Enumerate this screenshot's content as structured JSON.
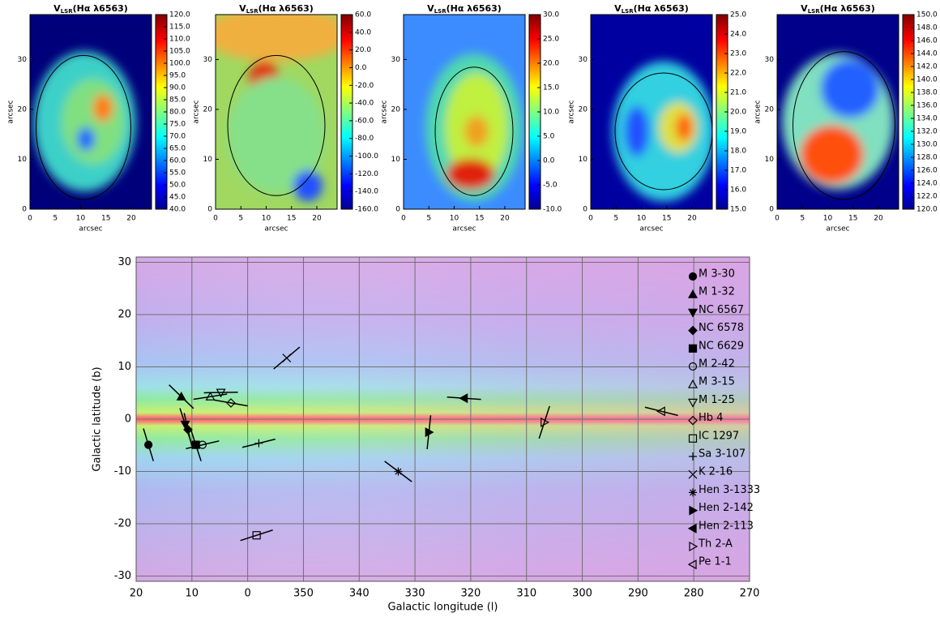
{
  "chart_data": [
    {
      "type": "heatmap",
      "title_main": "V",
      "title_sub": "LSR",
      "title_rest": "(Hα λ6563)",
      "xlabel": "arcsec",
      "ylabel": "arcsec",
      "xlim": [
        0,
        24
      ],
      "ylim": [
        0,
        39
      ],
      "xticks": [
        0,
        5,
        10,
        15,
        20
      ],
      "yticks": [
        0,
        10,
        20,
        30
      ],
      "clim": [
        40,
        120
      ],
      "cticks": [
        {
          "value": 40,
          "label": "40.0"
        },
        {
          "value": 45,
          "label": "45.0"
        },
        {
          "value": 50,
          "label": "50.0"
        },
        {
          "value": 55,
          "label": "55.0"
        },
        {
          "value": 60,
          "label": "60.0"
        },
        {
          "value": 65,
          "label": "65.0"
        },
        {
          "value": 70,
          "label": "70.0"
        },
        {
          "value": 75,
          "label": "75.0"
        },
        {
          "value": 80,
          "label": "80.0"
        },
        {
          "value": 85,
          "label": "85.0"
        },
        {
          "value": 90,
          "label": "90.0"
        },
        {
          "value": 95,
          "label": "95.0"
        },
        {
          "value": 100,
          "label": "100.0"
        },
        {
          "value": 105,
          "label": "105.0"
        },
        {
          "value": 110,
          "label": "110.0"
        },
        {
          "value": 115,
          "label": "115.0"
        },
        {
          "value": 120,
          "label": "120.0"
        }
      ]
    },
    {
      "type": "heatmap",
      "title_main": "V",
      "title_sub": "LSR",
      "title_rest": "(Hα λ6563)",
      "xlabel": "arcsec",
      "ylabel": "arcsec",
      "xlim": [
        0,
        24
      ],
      "ylim": [
        0,
        39
      ],
      "xticks": [
        0,
        5,
        10,
        15,
        20
      ],
      "yticks": [
        0,
        10,
        20,
        30
      ],
      "clim": [
        -160,
        60
      ],
      "cticks": [
        {
          "value": -160,
          "label": "-160.0"
        },
        {
          "value": -140,
          "label": "-140.0"
        },
        {
          "value": -120,
          "label": "-120.0"
        },
        {
          "value": -100,
          "label": "-100.0"
        },
        {
          "value": -80,
          "label": "-80.0"
        },
        {
          "value": -60,
          "label": "-60.0"
        },
        {
          "value": -40,
          "label": "-40.0"
        },
        {
          "value": -20,
          "label": "-20.0"
        },
        {
          "value": 0,
          "label": "0.0"
        },
        {
          "value": 20,
          "label": "20.0"
        },
        {
          "value": 40,
          "label": "40.0"
        },
        {
          "value": 60,
          "label": "60.0"
        }
      ]
    },
    {
      "type": "heatmap",
      "title_main": "V",
      "title_sub": "LSR",
      "title_rest": "(Hα λ6563)",
      "xlabel": "arcsec",
      "ylabel": "arcsec",
      "xlim": [
        0,
        24
      ],
      "ylim": [
        0,
        39
      ],
      "xticks": [
        0,
        5,
        10,
        15,
        20
      ],
      "yticks": [
        0,
        10,
        20,
        30
      ],
      "clim": [
        -10,
        30
      ],
      "cticks": [
        {
          "value": -10,
          "label": "-10.0"
        },
        {
          "value": -5,
          "label": "-5.0"
        },
        {
          "value": 0,
          "label": "0.0"
        },
        {
          "value": 5,
          "label": "5.0"
        },
        {
          "value": 10,
          "label": "10.0"
        },
        {
          "value": 15,
          "label": "15.0"
        },
        {
          "value": 20,
          "label": "20.0"
        },
        {
          "value": 25,
          "label": "25.0"
        },
        {
          "value": 30,
          "label": "30.0"
        }
      ]
    },
    {
      "type": "heatmap",
      "title_main": "V",
      "title_sub": "LSR",
      "title_rest": "(Hα λ6563)",
      "xlabel": "arcsec",
      "ylabel": "arcsec",
      "xlim": [
        0,
        24
      ],
      "ylim": [
        0,
        39
      ],
      "xticks": [
        0,
        5,
        10,
        15,
        20
      ],
      "yticks": [
        0,
        10,
        20,
        30
      ],
      "clim": [
        15,
        25
      ],
      "cticks": [
        {
          "value": 15,
          "label": "15.0"
        },
        {
          "value": 16,
          "label": "16.0"
        },
        {
          "value": 17,
          "label": "17.0"
        },
        {
          "value": 18,
          "label": "18.0"
        },
        {
          "value": 19,
          "label": "19.0"
        },
        {
          "value": 20,
          "label": "20.0"
        },
        {
          "value": 21,
          "label": "21.0"
        },
        {
          "value": 22,
          "label": "22.0"
        },
        {
          "value": 23,
          "label": "23.0"
        },
        {
          "value": 24,
          "label": "24.0"
        },
        {
          "value": 25,
          "label": "25.0"
        }
      ]
    },
    {
      "type": "heatmap",
      "title_main": "V",
      "title_sub": "LSR",
      "title_rest": "(Hα λ6563)",
      "xlabel": "arcsec",
      "ylabel": "arcsec",
      "xlim": [
        0,
        24
      ],
      "ylim": [
        0,
        39
      ],
      "xticks": [
        0,
        5,
        10,
        15,
        20
      ],
      "yticks": [
        0,
        10,
        20,
        30
      ],
      "clim": [
        120,
        150
      ],
      "cticks": [
        {
          "value": 120,
          "label": "120.0"
        },
        {
          "value": 122,
          "label": "122.0"
        },
        {
          "value": 124,
          "label": "124.0"
        },
        {
          "value": 126,
          "label": "126.0"
        },
        {
          "value": 128,
          "label": "128.0"
        },
        {
          "value": 130,
          "label": "130.0"
        },
        {
          "value": 132,
          "label": "132.0"
        },
        {
          "value": 134,
          "label": "134.0"
        },
        {
          "value": 136,
          "label": "136.0"
        },
        {
          "value": 138,
          "label": "138.0"
        },
        {
          "value": 140,
          "label": "140.0"
        },
        {
          "value": 142,
          "label": "142.0"
        },
        {
          "value": 144,
          "label": "144.0"
        },
        {
          "value": 146,
          "label": "146.0"
        },
        {
          "value": 148,
          "label": "148.0"
        },
        {
          "value": 150,
          "label": "150.0"
        }
      ]
    },
    {
      "type": "scatter",
      "xlabel": "Galactic longitude (l)",
      "ylabel": "Galactic latitude (b)",
      "color": "#000000",
      "grid": true,
      "xlim": [
        20,
        -90
      ],
      "ylim": [
        -31,
        31
      ],
      "xticks": [
        20,
        10,
        0,
        {
          "value": -10,
          "label": "350"
        },
        {
          "value": -20,
          "label": "340"
        },
        {
          "value": -30,
          "label": "330"
        },
        {
          "value": -40,
          "label": "320"
        },
        {
          "value": -50,
          "label": "310"
        },
        {
          "value": -60,
          "label": "300"
        },
        {
          "value": -70,
          "label": "290"
        },
        {
          "value": -80,
          "label": "280"
        },
        {
          "value": -90,
          "label": "270"
        }
      ],
      "yticks": [
        -30,
        -20,
        -10,
        0,
        10,
        20,
        30
      ],
      "series": [
        {
          "name": "M 3-30",
          "marker": "circle",
          "filled": true,
          "x": [
            17.8
          ],
          "values": [
            -4.9
          ],
          "angle": [
            -73
          ]
        },
        {
          "name": "M 1-32",
          "marker": "triangle-up",
          "filled": true,
          "x": [
            11.9
          ],
          "values": [
            4.3
          ],
          "angle": [
            -44
          ]
        },
        {
          "name": "NC 6567",
          "marker": "triangle-down",
          "filled": true,
          "x": [
            11.2
          ],
          "values": [
            -1.0
          ],
          "angle": [
            -72
          ]
        },
        {
          "name": "NC 6578",
          "marker": "diamond",
          "filled": true,
          "x": [
            10.7
          ],
          "values": [
            -2.0
          ],
          "angle": [
            -77
          ]
        },
        {
          "name": "NC 6629",
          "marker": "square",
          "filled": true,
          "x": [
            9.3
          ],
          "values": [
            -4.9
          ],
          "angle": [
            -72
          ]
        },
        {
          "name": "M 2-42",
          "marker": "circle",
          "filled": false,
          "x": [
            8.1
          ],
          "values": [
            -4.9
          ],
          "angle": [
            13
          ]
        },
        {
          "name": "M 3-15",
          "marker": "triangle-up",
          "filled": false,
          "x": [
            6.7
          ],
          "values": [
            4.3
          ],
          "angle": [
            9
          ]
        },
        {
          "name": "M 1-25",
          "marker": "triangle-down",
          "filled": false,
          "x": [
            4.8
          ],
          "values": [
            5.1
          ],
          "angle": [
            1
          ]
        },
        {
          "name": "Hb 4",
          "marker": "diamond",
          "filled": false,
          "x": [
            3.0
          ],
          "values": [
            3.1
          ],
          "angle": [
            -10
          ]
        },
        {
          "name": "IC 1297",
          "marker": "square",
          "filled": false,
          "x": [
            -1.6
          ],
          "values": [
            -22.2
          ],
          "angle": [
            18
          ]
        },
        {
          "name": "Sa 3-107",
          "marker": "plus",
          "filled": false,
          "x": [
            -2.0
          ],
          "values": [
            -4.6
          ],
          "angle": [
            14
          ]
        },
        {
          "name": "K 2-16",
          "marker": "cross",
          "filled": false,
          "x": [
            -7.0
          ],
          "values": [
            11.7
          ],
          "angle": [
            40
          ]
        },
        {
          "name": "Hen 3-1333",
          "marker": "asterisk",
          "filled": false,
          "x": [
            -27.0
          ],
          "values": [
            -10.0
          ],
          "angle": [
            -37
          ]
        },
        {
          "name": "Hen 2-142",
          "marker": "triangle-right",
          "filled": true,
          "x": [
            -32.5
          ],
          "values": [
            -2.5
          ],
          "angle": [
            84
          ]
        },
        {
          "name": "Hen 2-113",
          "marker": "triangle-left",
          "filled": true,
          "x": [
            -38.8
          ],
          "values": [
            4.0
          ],
          "angle": [
            -4
          ]
        },
        {
          "name": "Th 2-A",
          "marker": "triangle-right",
          "filled": false,
          "x": [
            -53.2
          ],
          "values": [
            -0.6
          ],
          "angle": [
            72
          ]
        },
        {
          "name": "Pe 1-1",
          "marker": "triangle-left",
          "filled": false,
          "x": [
            -74.2
          ],
          "values": [
            1.5
          ],
          "angle": [
            -14
          ]
        }
      ]
    }
  ]
}
